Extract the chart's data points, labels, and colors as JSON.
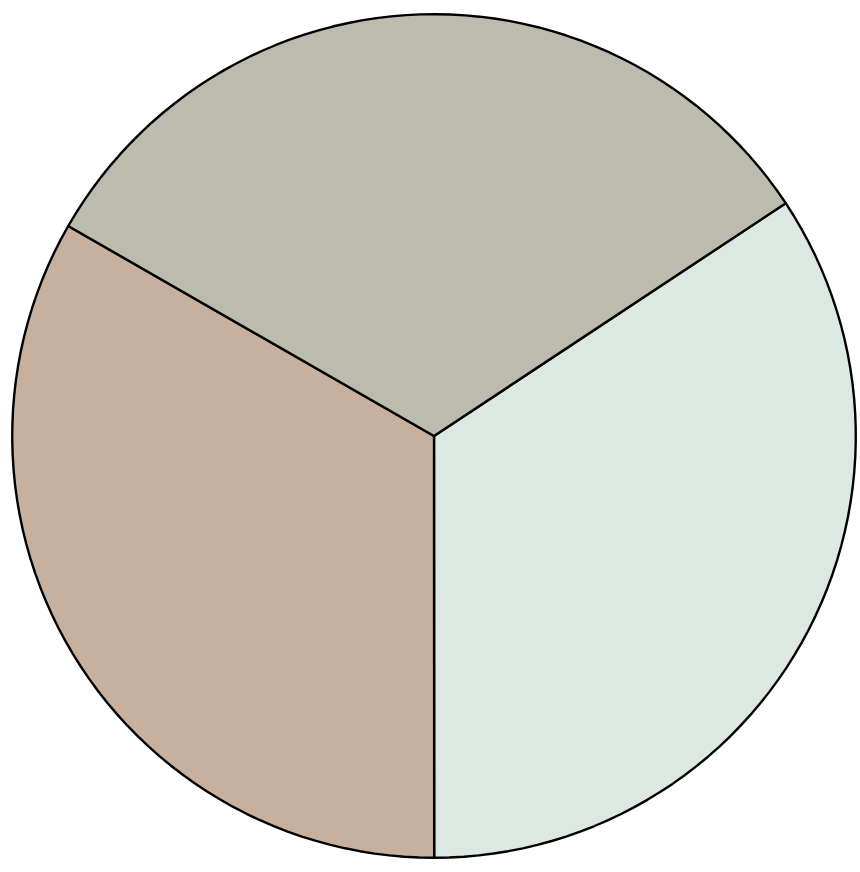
{
  "chart_data": {
    "type": "pie",
    "categories": [
      null,
      null,
      null
    ],
    "values": [
      34.3,
      33.3,
      32.4
    ],
    "colors": [
      "#dce8e2",
      "#c8b09e",
      "#bcbcae"
    ]
  }
}
